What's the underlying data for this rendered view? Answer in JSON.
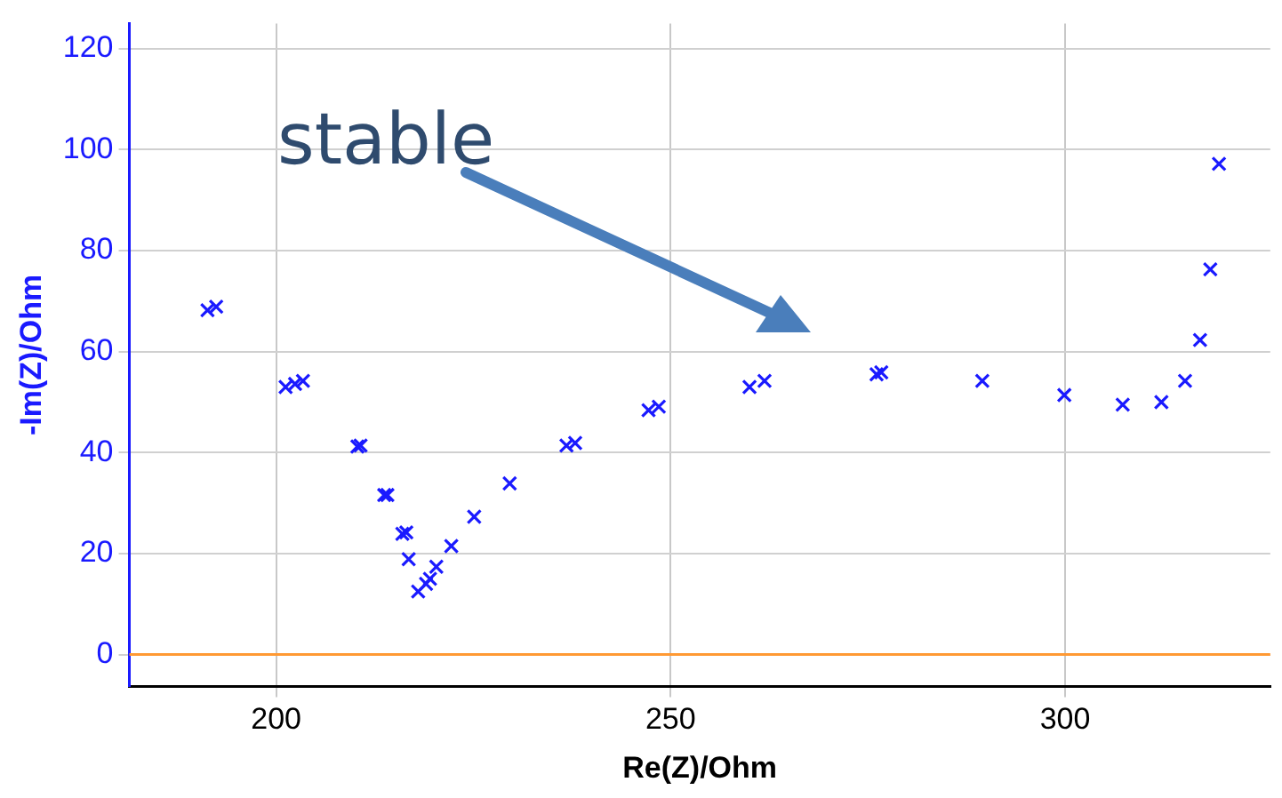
{
  "chart_data": {
    "type": "scatter",
    "xlabel": "Re(Z)/Ohm",
    "ylabel": "-Im(Z)/Ohm",
    "series": [
      {
        "color": "#1a1aff",
        "x": [
          191.3,
          192.4,
          201.2,
          202.4,
          203.4,
          210.3,
          210.7,
          213.7,
          214.1,
          216.0,
          216.5,
          216.8,
          218.0,
          219.0,
          219.5,
          220.3,
          222.2,
          225.1,
          229.6,
          236.8,
          237.9,
          247.2,
          248.5,
          260.0,
          261.9,
          276.1,
          276.7,
          289.5,
          299.9,
          307.3,
          312.2,
          315.2,
          317.1,
          318.4,
          319.5
        ],
        "values": [
          68.2,
          68.9,
          53.0,
          53.6,
          54.2,
          41.2,
          41.4,
          31.6,
          31.6,
          23.9,
          24.2,
          18.9,
          12.5,
          14.0,
          15.0,
          17.4,
          21.5,
          27.3,
          33.9,
          41.4,
          41.9,
          48.4,
          49.1,
          53.0,
          54.2,
          55.5,
          55.9,
          54.2,
          51.4,
          49.5,
          50.0,
          54.2,
          62.3,
          76.3,
          97.2
        ]
      }
    ],
    "xlim": [
      181.4,
      326
    ],
    "ylim": [
      -6.3,
      125
    ],
    "xticks": [
      200,
      250,
      300
    ],
    "yticks": [
      0,
      20,
      40,
      60,
      80,
      100,
      120
    ],
    "grid": true,
    "legend": false,
    "marker": "cross",
    "ref_lines": [
      {
        "axis": "y",
        "value": 0,
        "color": "#ff9933"
      }
    ],
    "annotations": [
      "stable"
    ]
  }
}
